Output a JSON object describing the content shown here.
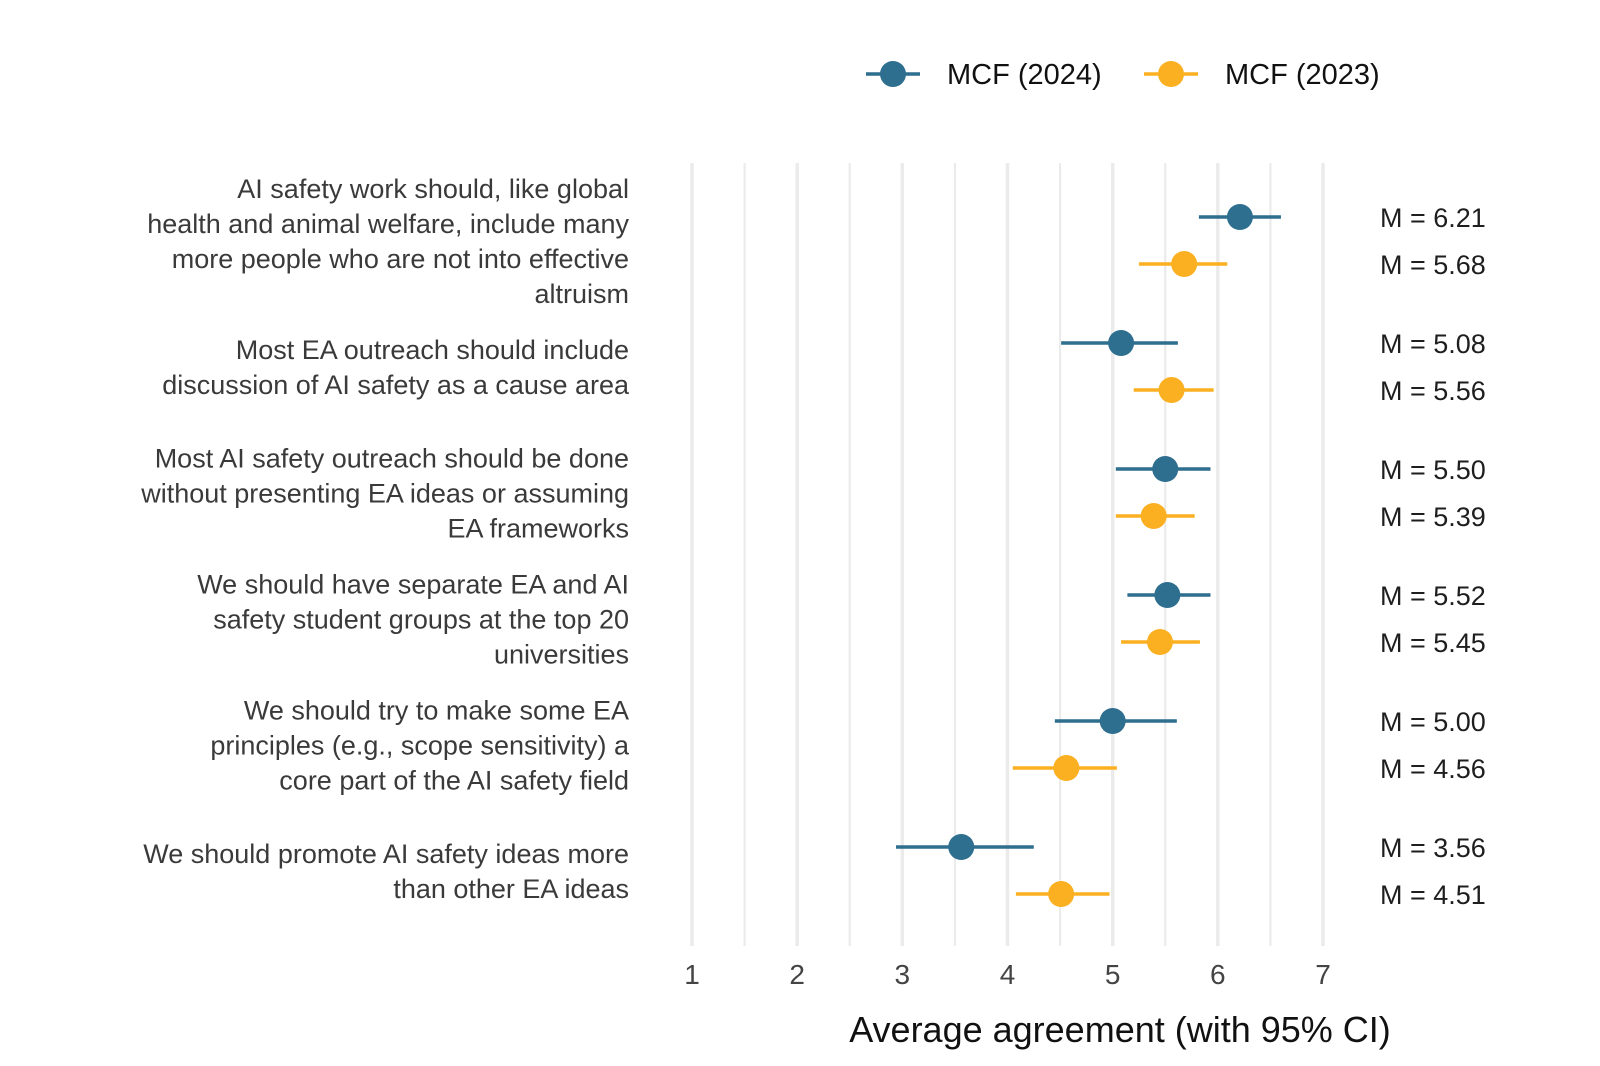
{
  "chart_data": {
    "type": "scatter",
    "subtype": "dot-and-whisker",
    "title": "",
    "xlabel": "Average agreement (with 95% CI)",
    "ylabel": "",
    "xlim": [
      1,
      7
    ],
    "xticks": [
      1,
      2,
      3,
      4,
      5,
      6,
      7
    ],
    "grid": true,
    "legend_position": "top-right",
    "series": [
      {
        "name": "MCF (2024)",
        "color": "#2e6e8e"
      },
      {
        "name": "MCF (2023)",
        "color": "#fbb021"
      }
    ],
    "categories": [
      "AI safety work should, like global health and animal welfare, include many more people who are not into effective altruism",
      "Most EA outreach should include discussion of AI safety as a cause area",
      "Most AI safety outreach should be done without presenting EA ideas or assuming EA frameworks",
      "We should have separate EA and AI safety student groups at the top 20 universities",
      "We should try to make some EA principles (e.g., scope sensitivity) a core part of the AI safety field",
      "We should promote AI safety ideas more than other EA ideas"
    ],
    "category_lines": [
      [
        "AI safety work should, like global",
        "health and animal welfare, include many",
        "more people who are not into effective",
        "altruism"
      ],
      [
        "Most EA outreach should include",
        "discussion of AI safety as a cause area"
      ],
      [
        "Most AI safety outreach should be done",
        "without presenting EA ideas or assuming",
        "EA frameworks"
      ],
      [
        "We should have separate EA and AI",
        "safety student groups at the top 20",
        "universities"
      ],
      [
        "We should try to make some EA",
        "principles (e.g., scope sensitivity) a",
        "core part of the AI safety field"
      ],
      [
        "We should promote AI safety ideas more",
        "than other EA ideas"
      ]
    ],
    "points": [
      {
        "category": 0,
        "series": "MCF (2024)",
        "mean": 6.21,
        "ci_low": 5.82,
        "ci_high": 6.6,
        "label": "M = 6.21"
      },
      {
        "category": 0,
        "series": "MCF (2023)",
        "mean": 5.68,
        "ci_low": 5.25,
        "ci_high": 6.09,
        "label": "M = 5.68"
      },
      {
        "category": 1,
        "series": "MCF (2024)",
        "mean": 5.08,
        "ci_low": 4.51,
        "ci_high": 5.62,
        "label": "M = 5.08"
      },
      {
        "category": 1,
        "series": "MCF (2023)",
        "mean": 5.56,
        "ci_low": 5.2,
        "ci_high": 5.96,
        "label": "M = 5.56"
      },
      {
        "category": 2,
        "series": "MCF (2024)",
        "mean": 5.5,
        "ci_low": 5.03,
        "ci_high": 5.93,
        "label": "M = 5.50"
      },
      {
        "category": 2,
        "series": "MCF (2023)",
        "mean": 5.39,
        "ci_low": 5.03,
        "ci_high": 5.78,
        "label": "M = 5.39"
      },
      {
        "category": 3,
        "series": "MCF (2024)",
        "mean": 5.52,
        "ci_low": 5.14,
        "ci_high": 5.93,
        "label": "M = 5.52"
      },
      {
        "category": 3,
        "series": "MCF (2023)",
        "mean": 5.45,
        "ci_low": 5.08,
        "ci_high": 5.83,
        "label": "M = 5.45"
      },
      {
        "category": 4,
        "series": "MCF (2024)",
        "mean": 5.0,
        "ci_low": 4.45,
        "ci_high": 5.61,
        "label": "M = 5.00"
      },
      {
        "category": 4,
        "series": "MCF (2023)",
        "mean": 4.56,
        "ci_low": 4.05,
        "ci_high": 5.04,
        "label": "M = 4.56"
      },
      {
        "category": 5,
        "series": "MCF (2024)",
        "mean": 3.56,
        "ci_low": 2.94,
        "ci_high": 4.25,
        "label": "M = 3.56"
      },
      {
        "category": 5,
        "series": "MCF (2023)",
        "mean": 4.51,
        "ci_low": 4.08,
        "ci_high": 4.97,
        "label": "M = 4.51"
      }
    ]
  },
  "legend": {
    "items": [
      {
        "label": "MCF (2024)",
        "color": "#2e6e8e"
      },
      {
        "label": "MCF (2023)",
        "color": "#fbb021"
      }
    ]
  },
  "colors": {
    "grid": "#ebebeb",
    "label_text": "#3a3a3a",
    "background": "#ffffff"
  }
}
